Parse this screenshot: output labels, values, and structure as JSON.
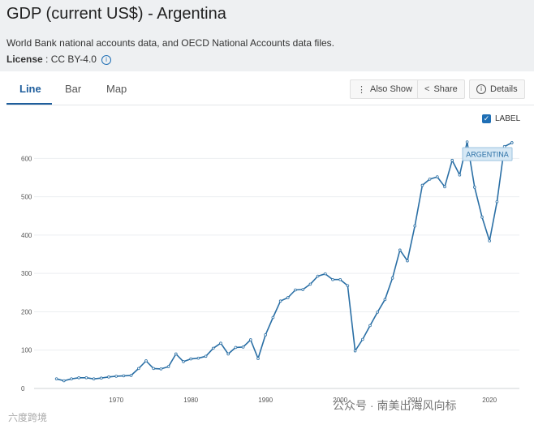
{
  "page": {
    "title": "GDP (current US$) - Argentina",
    "description": "World Bank national accounts data, and OECD National Accounts data files.",
    "license_label": "License",
    "license_value": " : CC BY-4.0"
  },
  "tabs": [
    {
      "label": "Line",
      "active": true
    },
    {
      "label": "Bar",
      "active": false
    },
    {
      "label": "Map",
      "active": false
    }
  ],
  "toolbar": {
    "also_show": "Also Show",
    "share": "Share",
    "details": "Details"
  },
  "label_toggle": {
    "label": "LABEL",
    "checked": true
  },
  "series_label": "ARGENTINA",
  "colors": {
    "line": "#2a6fa5",
    "accent": "#1f5e9c",
    "series_label_bg": "#d6e8f5"
  },
  "watermark": "公众号 · 南美出海风向标",
  "watermark2": "六度跨境",
  "chart_data": {
    "type": "line",
    "title": "GDP (current US$) - Argentina",
    "ylim": [
      0,
      660
    ],
    "yticks": [
      0,
      100,
      200,
      300,
      400,
      500,
      600
    ],
    "xlim": [
      1959,
      2024
    ],
    "xticks": [
      1970,
      1980,
      1990,
      2000,
      2010,
      2020
    ],
    "grid": true,
    "series": [
      {
        "name": "ARGENTINA",
        "x": [
          1962,
          1963,
          1964,
          1965,
          1966,
          1967,
          1968,
          1969,
          1970,
          1971,
          1972,
          1973,
          1974,
          1975,
          1976,
          1977,
          1978,
          1979,
          1980,
          1981,
          1982,
          1983,
          1984,
          1985,
          1986,
          1987,
          1988,
          1989,
          1990,
          1991,
          1992,
          1993,
          1994,
          1995,
          1996,
          1997,
          1998,
          1999,
          2000,
          2001,
          2002,
          2003,
          2004,
          2005,
          2006,
          2007,
          2008,
          2009,
          2010,
          2011,
          2012,
          2013,
          2014,
          2015,
          2016,
          2017,
          2018,
          2019,
          2020,
          2021,
          2022,
          2023
        ],
        "y": [
          25,
          20,
          25,
          28,
          28,
          25,
          27,
          30,
          32,
          33,
          34,
          52,
          72,
          52,
          51,
          57,
          90,
          70,
          77,
          79,
          84,
          105,
          118,
          90,
          107,
          108,
          127,
          78,
          140,
          185,
          228,
          237,
          257,
          258,
          272,
          293,
          299,
          284,
          284,
          268,
          98,
          128,
          164,
          199,
          232,
          288,
          361,
          333,
          424,
          530,
          546,
          552,
          526,
          595,
          557,
          643,
          525,
          447,
          385,
          487,
          631,
          641
        ]
      }
    ]
  }
}
